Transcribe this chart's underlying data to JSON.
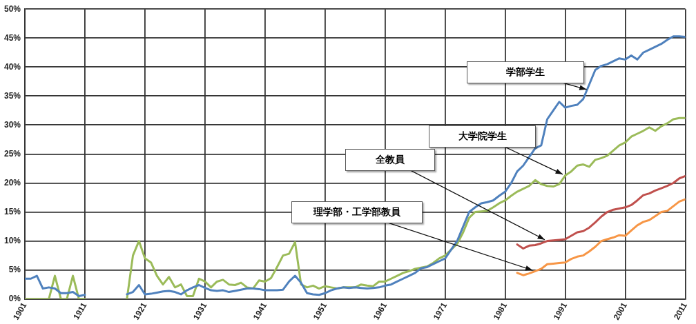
{
  "chart_data": {
    "type": "line",
    "x": [
      1901,
      1902,
      1903,
      1904,
      1905,
      1906,
      1907,
      1908,
      1909,
      1910,
      1911,
      1912,
      1913,
      1914,
      1915,
      1916,
      1917,
      1918,
      1919,
      1920,
      1921,
      1922,
      1923,
      1924,
      1925,
      1926,
      1927,
      1928,
      1929,
      1930,
      1931,
      1932,
      1933,
      1934,
      1935,
      1936,
      1937,
      1938,
      1939,
      1940,
      1941,
      1942,
      1943,
      1944,
      1945,
      1946,
      1947,
      1948,
      1949,
      1950,
      1951,
      1952,
      1953,
      1954,
      1955,
      1956,
      1957,
      1958,
      1959,
      1960,
      1961,
      1962,
      1963,
      1964,
      1965,
      1966,
      1967,
      1968,
      1969,
      1970,
      1971,
      1972,
      1973,
      1974,
      1975,
      1976,
      1977,
      1978,
      1979,
      1980,
      1981,
      1982,
      1983,
      1984,
      1985,
      1986,
      1987,
      1988,
      1989,
      1990,
      1991,
      1992,
      1993,
      1994,
      1995,
      1996,
      1997,
      1998,
      1999,
      2000,
      2001,
      2002,
      2003,
      2004,
      2005,
      2006,
      2007,
      2008,
      2009,
      2010,
      2011
    ],
    "series": [
      {
        "color": "#4f81bd",
        "values": [
          3.5,
          3.5,
          4,
          1.8,
          2,
          1.8,
          1,
          1,
          1.2,
          0.5,
          0.7,
          null,
          null,
          null,
          null,
          null,
          null,
          0.8,
          1.2,
          2.4,
          0.8,
          0.9,
          1.1,
          1.3,
          1.4,
          1.2,
          0.8,
          1.5,
          2,
          2.4,
          1.9,
          1.5,
          1.4,
          1.5,
          1.2,
          1.4,
          1.6,
          1.8,
          1.8,
          1.7,
          1.5,
          1.5,
          1.5,
          1.6,
          3,
          4,
          2.8,
          1,
          0.8,
          0.7,
          1,
          1.5,
          1.8,
          2,
          1.9,
          2,
          1.9,
          1.8,
          1.9,
          2,
          2.3,
          2.5,
          3,
          3.5,
          4,
          4.5,
          5.3,
          5.5,
          6,
          6.5,
          7,
          8.5,
          10,
          12.5,
          15,
          15.8,
          16.5,
          16.7,
          17,
          17.8,
          18.5,
          20,
          22,
          23,
          24.5,
          26,
          26.5,
          31,
          32.5,
          34,
          33,
          33.3,
          33.5,
          34.5,
          37,
          39.5,
          40.2,
          40.5,
          41,
          41.5,
          41.3,
          42,
          41.3,
          42.5,
          43,
          43.5,
          44,
          44.7,
          45.3,
          45.3,
          45.2
        ]
      },
      {
        "color": "#9bbb59",
        "values": [
          0,
          0,
          0,
          0,
          0,
          4,
          0,
          0,
          4,
          0,
          0,
          null,
          null,
          null,
          null,
          null,
          null,
          0,
          7.5,
          10,
          7,
          6.3,
          4,
          2.5,
          3.8,
          2,
          2.5,
          0.5,
          0.5,
          3.5,
          3,
          2,
          3,
          3.3,
          2.5,
          2.4,
          2.8,
          2,
          1.8,
          3.2,
          3,
          3.6,
          5.5,
          7.5,
          7.8,
          9.8,
          2.5,
          2,
          2.3,
          1.8,
          2.2,
          2,
          1.8,
          2,
          2,
          2,
          2.5,
          2.3,
          2.2,
          3,
          3,
          3.5,
          4,
          4.5,
          4.8,
          5.2,
          5.4,
          5.6,
          6.2,
          7,
          7.5,
          8.5,
          9.5,
          11.5,
          14,
          15,
          15.1,
          15.2,
          15.8,
          16.5,
          17,
          17.8,
          18.5,
          19,
          19.5,
          20.5,
          19.8,
          19.5,
          19.4,
          19.8,
          21.3,
          22,
          23,
          23.2,
          22.8,
          24,
          24.3,
          24.7,
          25.6,
          26.5,
          27,
          28,
          28.5,
          29,
          29.6,
          29,
          29.8,
          30.3,
          31,
          31.2,
          31.2
        ]
      },
      {
        "color": "#c0504d",
        "x": [
          1983,
          1984,
          1985,
          1986,
          1987,
          1988,
          1989,
          1990,
          1991,
          1992,
          1993,
          1994,
          1995,
          1996,
          1997,
          1998,
          1999,
          2000,
          2001,
          2002,
          2003,
          2004,
          2005,
          2006,
          2007,
          2008,
          2009,
          2010,
          2011
        ],
        "values": [
          9.4,
          8.7,
          9.2,
          9.3,
          9.6,
          10,
          10.1,
          10.2,
          10.3,
          10.9,
          11.5,
          11.7,
          12.3,
          13.2,
          14.2,
          15,
          15.4,
          15.6,
          15.8,
          16.2,
          17,
          17.9,
          18.2,
          18.7,
          19.1,
          19.5,
          20,
          20.8,
          21.2
        ]
      },
      {
        "color": "#f79646",
        "x": [
          1983,
          1984,
          1985,
          1986,
          1987,
          1988,
          1989,
          1990,
          1991,
          1992,
          1993,
          1994,
          1995,
          1996,
          1997,
          1998,
          1999,
          2000,
          2001,
          2002,
          2003,
          2004,
          2005,
          2006,
          2007,
          2008,
          2009,
          2010,
          2011
        ],
        "values": [
          4.5,
          4.1,
          4.4,
          4.8,
          5.2,
          6,
          6.1,
          6.2,
          6.3,
          6.9,
          7.3,
          7.5,
          8.2,
          9,
          10,
          10.3,
          10.6,
          11,
          10.9,
          11.8,
          12.7,
          13.3,
          13.6,
          14.3,
          15,
          15.2,
          16,
          16.8,
          17.2
        ]
      }
    ],
    "xlim": [
      1901,
      2011
    ],
    "xticks": [
      1901,
      1911,
      1921,
      1931,
      1941,
      1951,
      1961,
      1971,
      1981,
      1991,
      2001,
      2011
    ],
    "ylim": [
      0,
      50
    ],
    "yticks": [
      {
        "value": 0,
        "label": "0%"
      },
      {
        "value": 5,
        "label": "5%"
      },
      {
        "value": 10,
        "label": "10%"
      },
      {
        "value": 15,
        "label": "15%"
      },
      {
        "value": 20,
        "label": "20%"
      },
      {
        "value": 25,
        "label": "25%"
      },
      {
        "value": 30,
        "label": "30%"
      },
      {
        "value": 35,
        "label": "35%"
      },
      {
        "value": 40,
        "label": "40%"
      },
      {
        "value": 45,
        "label": "45%"
      },
      {
        "value": 50,
        "label": "50%"
      }
    ],
    "grid": true,
    "legend": false,
    "marker": "none",
    "line_style": "solid",
    "annotations": [
      {
        "text": "学部学生",
        "x": 1995,
        "y": 36
      },
      {
        "text": "大学院学生",
        "x": 1991,
        "y": 21.3
      },
      {
        "text": "全教員",
        "x": 1988,
        "y": 10
      },
      {
        "text": "理学部・工学部教員",
        "x": 1986,
        "y": 4.8
      }
    ]
  }
}
